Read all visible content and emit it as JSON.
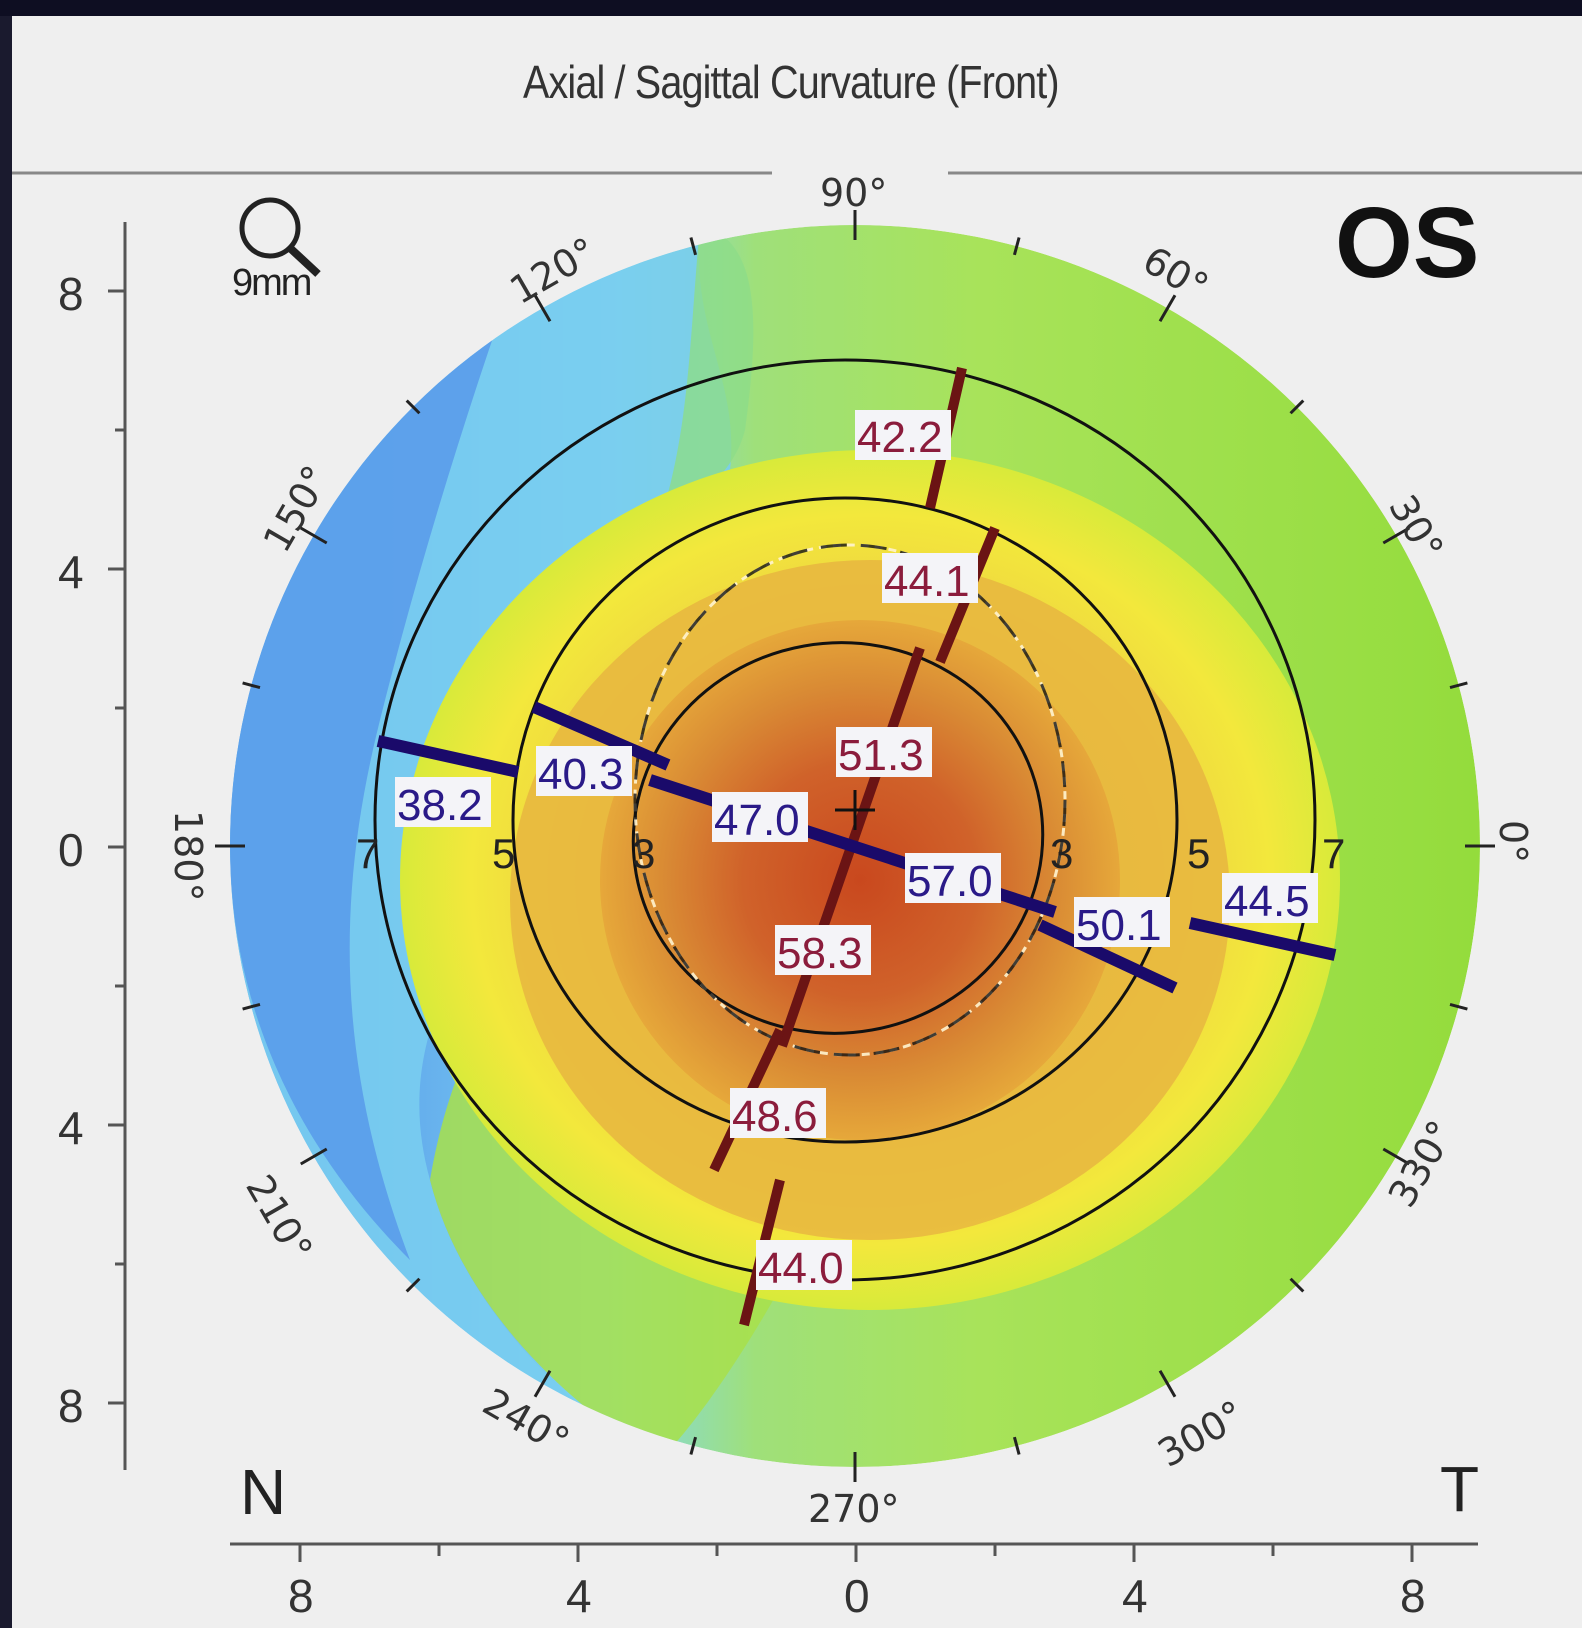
{
  "title": "Axial / Sagittal Curvature (Front)",
  "eye": "OS",
  "zoom": {
    "icon": "magnifier-icon",
    "label": "9mm"
  },
  "orientation": {
    "nasal": "N",
    "temporal": "T"
  },
  "axes": {
    "y_ticks": [
      "8",
      "4",
      "0",
      "4",
      "8"
    ],
    "x_ticks": [
      "8",
      "4",
      "0",
      "4",
      "8"
    ]
  },
  "angles": {
    "a90": "90°",
    "a60": "60°",
    "a30": "30°",
    "a0": "0°",
    "a330": "330°",
    "a300": "300°",
    "a270": "270°",
    "a240": "240°",
    "a210": "210°",
    "a180": "180°",
    "a150": "150°",
    "a120": "120°"
  },
  "rings": {
    "left": [
      "7",
      "5",
      "3"
    ],
    "right": [
      "3",
      "5",
      "7"
    ]
  },
  "steep_meridian_values": [
    "42.2",
    "44.1",
    "51.3",
    "58.3",
    "48.6",
    "44.0"
  ],
  "flat_meridian_values": [
    "38.2",
    "40.3",
    "47.0",
    "57.0",
    "50.1",
    "44.5"
  ],
  "colors": {
    "steep_meridian": "#6b1414",
    "flat_meridian": "#1a0a6a",
    "steep_text": "#8b1c3c",
    "flat_text": "#2a1a88"
  }
}
